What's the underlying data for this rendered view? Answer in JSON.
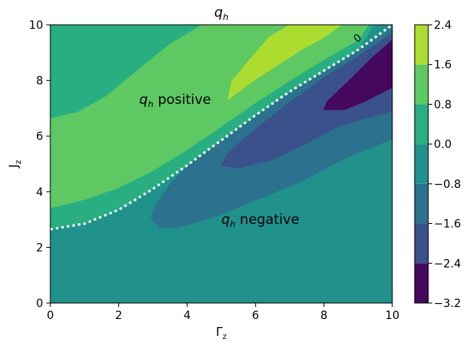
{
  "chart_data": {
    "type": "contourf",
    "title": {
      "base": "q",
      "sub": "h"
    },
    "xlabel": {
      "base": "Γ",
      "sub": "z"
    },
    "ylabel": {
      "base": "J",
      "sub": "z"
    },
    "xlim": [
      0,
      10
    ],
    "ylim": [
      0,
      10
    ],
    "x_ticks": [
      "0",
      "2",
      "4",
      "6",
      "8",
      "10"
    ],
    "y_ticks": [
      "0",
      "2",
      "4",
      "6",
      "8",
      "10"
    ],
    "colorbar": {
      "range": [
        -3.2,
        2.4
      ],
      "levels": [
        -3.2,
        -2.4,
        -1.6,
        -0.8,
        0.0,
        0.8,
        1.6,
        2.4
      ],
      "tick_labels": [
        "−3.2",
        "−2.4",
        "−1.6",
        "−0.8",
        "0.0",
        "0.8",
        "1.6",
        "2.4"
      ],
      "colors": [
        "#46085c",
        "#3b518b",
        "#2c718e",
        "#21918c",
        "#28ae80",
        "#5ec962",
        "#addc30",
        "#d7e11e"
      ]
    },
    "zero_contour": {
      "label": "0",
      "points": [
        [
          0,
          2.65
        ],
        [
          1,
          2.85
        ],
        [
          2,
          3.35
        ],
        [
          3,
          4.1
        ],
        [
          4,
          4.95
        ],
        [
          5,
          5.85
        ],
        [
          6,
          6.75
        ],
        [
          7,
          7.6
        ],
        [
          8,
          8.35
        ],
        [
          9,
          9.1
        ],
        [
          10,
          10.0
        ]
      ]
    },
    "regions": [
      {
        "level_index": 3,
        "points": [
          [
            0,
            2.62
          ],
          [
            1,
            2.86
          ],
          [
            2,
            3.38
          ],
          [
            3,
            4.13
          ],
          [
            4,
            4.98
          ],
          [
            5,
            5.88
          ],
          [
            6,
            6.78
          ],
          [
            7,
            7.6
          ],
          [
            8,
            8.32
          ],
          [
            9,
            9.05
          ],
          [
            10,
            10
          ],
          [
            10,
            0
          ],
          [
            0,
            0
          ]
        ]
      },
      {
        "level_index": 4,
        "points": [
          [
            0,
            2.65
          ],
          [
            1,
            2.85
          ],
          [
            2,
            3.35
          ],
          [
            3,
            4.1
          ],
          [
            4,
            4.95
          ],
          [
            5,
            5.85
          ],
          [
            6,
            6.75
          ],
          [
            7,
            7.6
          ],
          [
            8,
            8.35
          ],
          [
            9,
            9.1
          ],
          [
            9.45,
            10
          ],
          [
            0,
            10
          ]
        ]
      },
      {
        "level_index": 5,
        "points": [
          [
            0,
            3.42
          ],
          [
            1,
            3.72
          ],
          [
            2,
            4.15
          ],
          [
            3,
            4.76
          ],
          [
            4,
            5.52
          ],
          [
            5,
            6.35
          ],
          [
            6,
            7.2
          ],
          [
            7,
            8.0
          ],
          [
            8,
            8.75
          ],
          [
            9,
            9.45
          ],
          [
            9.3,
            10
          ],
          [
            4.45,
            10
          ],
          [
            3.5,
            9.3
          ],
          [
            2.5,
            8.3
          ],
          [
            1.6,
            7.4
          ],
          [
            0.8,
            6.85
          ],
          [
            0,
            6.62
          ]
        ]
      },
      {
        "level_index": 6,
        "points": [
          [
            5.2,
            7.32
          ],
          [
            5.5,
            7.6
          ],
          [
            6.0,
            8.05
          ],
          [
            6.7,
            8.6
          ],
          [
            7.4,
            9.15
          ],
          [
            8.0,
            9.55
          ],
          [
            8.5,
            10
          ],
          [
            7.0,
            10
          ],
          [
            6.4,
            9.55
          ],
          [
            5.8,
            8.7
          ],
          [
            5.3,
            7.95
          ]
        ]
      },
      {
        "level_index": 2,
        "points": [
          [
            3.2,
            2.7
          ],
          [
            3.7,
            2.7
          ],
          [
            4.8,
            3.1
          ],
          [
            6.0,
            3.7
          ],
          [
            7.3,
            4.35
          ],
          [
            8.6,
            5.2
          ],
          [
            10,
            5.9
          ],
          [
            10,
            9.9
          ],
          [
            9.0,
            9.05
          ],
          [
            8.0,
            8.3
          ],
          [
            7.0,
            7.55
          ],
          [
            6.0,
            6.7
          ],
          [
            5.0,
            5.82
          ],
          [
            4.2,
            5.1
          ],
          [
            3.55,
            4.35
          ],
          [
            3.1,
            3.55
          ],
          [
            2.95,
            3.05
          ]
        ]
      },
      {
        "level_index": 1,
        "points": [
          [
            5.0,
            4.95
          ],
          [
            5.5,
            4.85
          ],
          [
            6.5,
            5.15
          ],
          [
            7.5,
            5.75
          ],
          [
            8.5,
            6.4
          ],
          [
            10,
            6.9
          ],
          [
            10,
            9.7
          ],
          [
            9.0,
            8.85
          ],
          [
            8.0,
            8.1
          ],
          [
            7.0,
            7.2
          ],
          [
            6.0,
            6.25
          ],
          [
            5.2,
            5.4
          ]
        ]
      },
      {
        "level_index": 0,
        "points": [
          [
            8.0,
            6.95
          ],
          [
            8.6,
            6.95
          ],
          [
            9.2,
            7.25
          ],
          [
            10,
            7.75
          ],
          [
            10,
            9.45
          ],
          [
            9.4,
            8.8
          ],
          [
            8.7,
            7.95
          ],
          [
            8.1,
            7.25
          ]
        ]
      }
    ],
    "annotations": [
      {
        "base": "q",
        "sub": "h",
        "text": " positive",
        "x": 2.6,
        "y": 7.15
      },
      {
        "base": "q",
        "sub": "h",
        "text": " negative",
        "x": 5.0,
        "y": 2.85
      }
    ]
  }
}
